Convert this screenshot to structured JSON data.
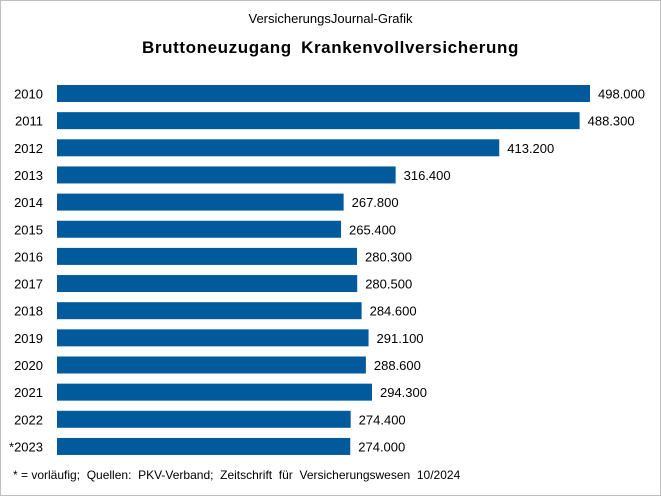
{
  "header": {
    "supertitle": "VersicherungsJournal-Grafik",
    "title": "Bruttoneuzugang  Krankenvollversicherung"
  },
  "footnote": "* = vorläufig;  Quellen:  PKV-Verband;  Zeitschrift  für  Versicherungswesen  10/2024",
  "colors": {
    "bar": "#005a9c"
  },
  "chart_data": {
    "type": "bar",
    "orientation": "horizontal",
    "title": "Bruttoneuzugang  Krankenvollversicherung",
    "categories": [
      "2010",
      "2011",
      "2012",
      "2013",
      "2014",
      "2015",
      "2016",
      "2017",
      "2018",
      "2019",
      "2020",
      "2021",
      "2022",
      "*2023"
    ],
    "values": [
      498000,
      488300,
      413200,
      316400,
      267800,
      265400,
      280300,
      280500,
      284600,
      291100,
      288600,
      294300,
      274400,
      274000
    ],
    "value_labels": [
      "498.000",
      "488.300",
      "413.200",
      "316.400",
      "267.800",
      "265.400",
      "280.300",
      "280.500",
      "284.600",
      "291.100",
      "288.600",
      "294.300",
      "274.400",
      "274.000"
    ],
    "xlim": [
      0,
      498000
    ],
    "grid": false,
    "legend": "none"
  }
}
